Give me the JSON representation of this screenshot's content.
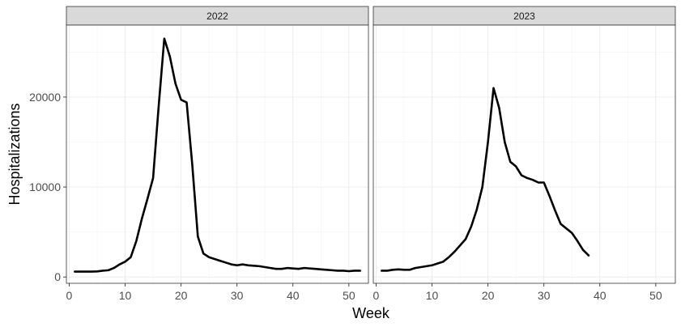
{
  "chart_data": {
    "type": "line",
    "xlabel": "Week",
    "ylabel": "Hospitalizations",
    "xlim": [
      -0.5,
      53.5
    ],
    "ylim": [
      -700,
      28000
    ],
    "x_ticks": [
      0,
      10,
      20,
      30,
      40,
      50
    ],
    "y_ticks": [
      0,
      10000,
      20000
    ],
    "grid": true,
    "line_color": "#000000",
    "strip_fill": "#d9d9d9",
    "panels": [
      {
        "label": "2022",
        "x": [
          1,
          2,
          3,
          4,
          5,
          6,
          7,
          8,
          9,
          10,
          11,
          12,
          13,
          14,
          15,
          16,
          17,
          18,
          19,
          20,
          21,
          22,
          23,
          24,
          25,
          26,
          27,
          28,
          29,
          30,
          31,
          32,
          33,
          34,
          35,
          36,
          37,
          38,
          39,
          40,
          41,
          42,
          43,
          44,
          45,
          46,
          47,
          48,
          49,
          50,
          51,
          52
        ],
        "y": [
          600,
          600,
          600,
          600,
          620,
          700,
          750,
          1000,
          1400,
          1700,
          2200,
          4000,
          6500,
          8700,
          11000,
          19000,
          26500,
          24500,
          21500,
          19700,
          19400,
          12500,
          4500,
          2600,
          2200,
          2000,
          1800,
          1600,
          1400,
          1300,
          1400,
          1300,
          1250,
          1200,
          1100,
          1000,
          900,
          900,
          1000,
          950,
          900,
          1000,
          950,
          900,
          850,
          800,
          750,
          700,
          700,
          650,
          700,
          700
        ]
      },
      {
        "label": "2023",
        "x": [
          1,
          2,
          3,
          4,
          5,
          6,
          7,
          8,
          9,
          10,
          11,
          12,
          13,
          14,
          15,
          16,
          17,
          18,
          19,
          20,
          21,
          22,
          23,
          24,
          25,
          26,
          27,
          28,
          29,
          30,
          31,
          32,
          33,
          34,
          35,
          36,
          37,
          38
        ],
        "y": [
          700,
          700,
          800,
          850,
          800,
          800,
          1000,
          1100,
          1200,
          1300,
          1500,
          1700,
          2200,
          2800,
          3500,
          4200,
          5600,
          7500,
          10000,
          15000,
          21000,
          18800,
          15000,
          12800,
          12300,
          11300,
          11000,
          10800,
          10500,
          10500,
          9000,
          7400,
          5900,
          5400,
          4900,
          4000,
          3000,
          2400
        ]
      }
    ]
  }
}
